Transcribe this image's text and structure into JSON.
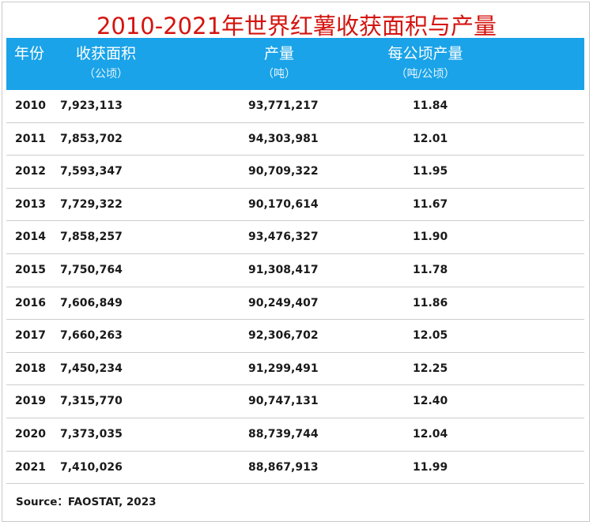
{
  "title": "2010-2021年世界红薯收获面积与产量",
  "headers": {
    "year": "年份",
    "area": "收获面积",
    "area_unit": "（公顷）",
    "production": "产量",
    "production_unit": "（吨）",
    "yield": "每公顷产量",
    "yield_unit": "（吨/公顷）"
  },
  "source": "Source：FAOSTAT, 2023",
  "colors": {
    "title": "#d4140f",
    "header_bg": "#1aa3e8",
    "header_text": "#ffffff"
  },
  "chart_data": {
    "type": "table",
    "columns": [
      "年份",
      "收获面积（公顷）",
      "产量（吨）",
      "每公顷产量（吨/公顷）"
    ],
    "rows": [
      [
        "2010",
        "7,923,113",
        "93,771,217",
        "11.84"
      ],
      [
        "2011",
        "7,853,702",
        "94,303,981",
        "12.01"
      ],
      [
        "2012",
        "7,593,347",
        "90,709,322",
        "11.95"
      ],
      [
        "2013",
        "7,729,322",
        "90,170,614",
        "11.67"
      ],
      [
        "2014",
        "7,858,257",
        "93,476,327",
        "11.90"
      ],
      [
        "2015",
        "7,750,764",
        "91,308,417",
        "11.78"
      ],
      [
        "2016",
        "7,606,849",
        "90,249,407",
        "11.86"
      ],
      [
        "2017",
        "7,660,263",
        "92,306,702",
        "12.05"
      ],
      [
        "2018",
        "7,450,234",
        "91,299,491",
        "12.25"
      ],
      [
        "2019",
        "7,315,770",
        "90,747,131",
        "12.40"
      ],
      [
        "2020",
        "7,373,035",
        "88,739,744",
        "12.04"
      ],
      [
        "2021",
        "7,410,026",
        "88,867,913",
        "11.99"
      ]
    ]
  }
}
